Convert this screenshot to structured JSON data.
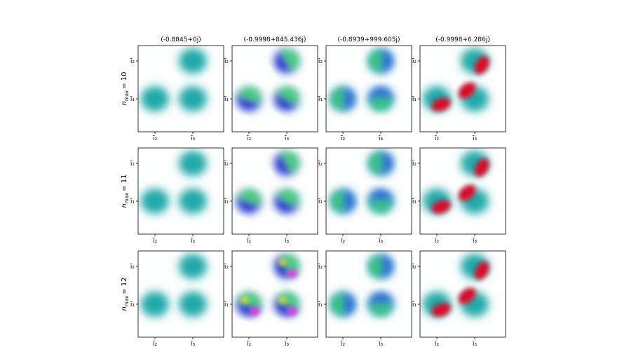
{
  "figure": {
    "columns": [
      {
        "title": "(-0.8845+0j)"
      },
      {
        "title": "(-0.9998+845.436j)"
      },
      {
        "title": "(-0.8939+999.605j)"
      },
      {
        "title": "(-0.9998+6.286j)"
      }
    ],
    "rows": [
      {
        "label": {
          "symbol": "n",
          "subscript": "max",
          "equals": "= 10"
        }
      },
      {
        "label": {
          "symbol": "n",
          "subscript": "max",
          "equals": "= 11"
        }
      },
      {
        "label": {
          "symbol": "n",
          "subscript": "max",
          "equals": "= 12"
        }
      }
    ],
    "x_tick_labels": [
      "ĩ₂",
      "ĩ₃"
    ],
    "y_tick_labels": [
      "ĩ₂",
      "ĩ₁"
    ]
  }
}
